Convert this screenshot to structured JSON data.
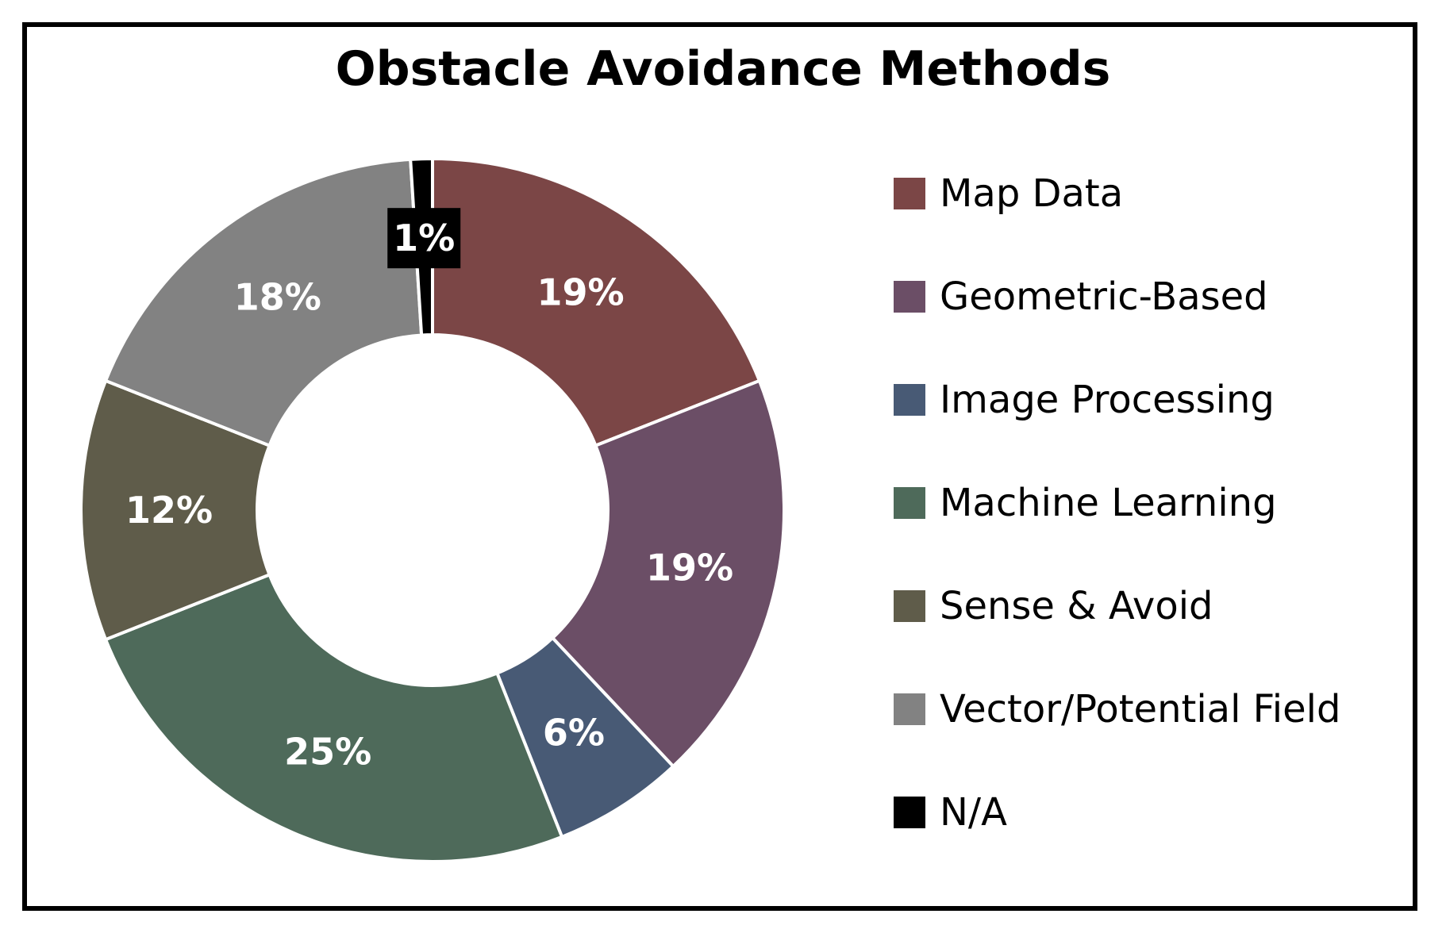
{
  "chart_data": {
    "type": "pie",
    "variant": "donut",
    "title": "Obstacle Avoidance Methods",
    "legend_position": "right",
    "slices": [
      {
        "label": "Map Data",
        "value": 19,
        "value_label": "19%",
        "color": "#7B4646"
      },
      {
        "label": "Geometric-Based",
        "value": 19,
        "value_label": "19%",
        "color": "#6B4E66"
      },
      {
        "label": "Image Processing",
        "value": 6,
        "value_label": "6%",
        "color": "#485A75"
      },
      {
        "label": "Machine Learning",
        "value": 25,
        "value_label": "25%",
        "color": "#4E6A5A"
      },
      {
        "label": "Sense & Avoid",
        "value": 12,
        "value_label": "12%",
        "color": "#5F5C4A"
      },
      {
        "label": "Vector/Potential Field",
        "value": 18,
        "value_label": "18%",
        "color": "#828282"
      },
      {
        "label": "N/A",
        "value": 1,
        "value_label": "1%",
        "color": "#000000"
      }
    ]
  }
}
